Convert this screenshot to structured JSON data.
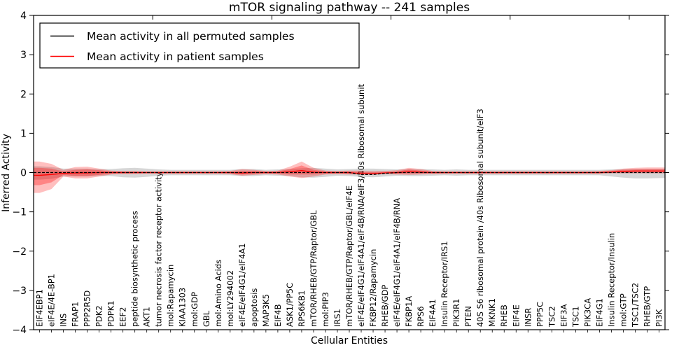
{
  "chart_data": {
    "type": "line",
    "title": "mTOR signaling pathway -- 241 samples",
    "xlabel": "Cellular Entities",
    "ylabel": "Inferred Activity",
    "ylim": [
      -4,
      4
    ],
    "grid": false,
    "ytick_values": [
      4,
      3,
      2,
      1,
      0,
      -1,
      -2,
      -3,
      -4
    ],
    "ytick_labels": [
      "4",
      "3",
      "2",
      "1",
      "0",
      "−1",
      "−2",
      "−3",
      "−4"
    ],
    "top_tick_indices": [
      10,
      20,
      30,
      40,
      50
    ],
    "legend": {
      "position": "upper left",
      "entries": [
        {
          "label": "Mean activity in all permuted samples",
          "color": "#000000"
        },
        {
          "label": "Mean activity in patient samples",
          "color": "#ff0000"
        }
      ]
    },
    "x_labels": [
      "EIF4EBP1",
      "eIF4E/4E-BP1",
      "INS",
      "FRAP1",
      "PPP2R5D",
      "PDK2",
      "PDPK1",
      "EEF2",
      "peptide biosynthetic process",
      "AKT1",
      "tumor necrosis factor receptor activity",
      "mol:Rapamycin",
      "KIAA1303",
      "mol:GDP",
      "GBL",
      "mol:Amino Acids",
      "mol:LY294002",
      "eIF4E/eIF4G1/eIF4A1",
      "apoptosis",
      "MAP3K5",
      "EIF4B",
      "ASK1/PP5C",
      "RPS6KB1",
      "mTOR/RHEB/GTP/Raptor/GBL",
      "mol:PIP3",
      "IRS1",
      "mTOR/RHEB/GTP/Raptor/GBL/eIF4E",
      "eIF4E/eIF4G1/eIF4A1/eIF4B/RNA/eIF3/40s Ribosomal subunit",
      "FKBP12/Rapamycin",
      "RHEB/GDP",
      "eIF4E/eIF4G1/eIF4A1/eIF4B/RNA",
      "FKBP1A",
      "RPS6",
      "EIF4A1",
      "Insulin Receptor/IRS1",
      "PIK3R1",
      "PTEN",
      "40S S6 ribosomal protein /40s Ribosomal subunit/eIF3",
      "MKNK1",
      "RHEB",
      "EIF4E",
      "INSR",
      "PPP5C",
      "TSC2",
      "EIF3A",
      "TSC1",
      "PIK3CA",
      "EIF4G1",
      "Insulin Receptor/Insulin",
      "mol:GTP",
      "TSC1/TSC2",
      "RHEB/GTP",
      "PI3K"
    ],
    "series": [
      {
        "name": "Mean activity in all permuted samples",
        "color": "#000000",
        "style": "dashed",
        "values": [
          0,
          0,
          0,
          0,
          0,
          0,
          0,
          0,
          0,
          0,
          0,
          0,
          0,
          0,
          0,
          0,
          0,
          0,
          0,
          0,
          0,
          0,
          0,
          0,
          0,
          0,
          0,
          -0.05,
          -0.05,
          -0.02,
          0,
          0,
          0,
          0,
          0,
          0,
          0,
          0,
          0,
          0,
          0,
          0,
          0,
          0,
          0,
          0,
          0,
          0,
          0,
          0,
          0,
          0,
          0
        ]
      },
      {
        "name": "Mean activity in patient samples",
        "color": "#ff0000",
        "style": "solid",
        "values": [
          -0.07,
          -0.05,
          -0.02,
          -0.01,
          -0.01,
          0,
          0,
          0,
          0,
          0,
          0,
          0,
          0,
          0,
          0,
          0,
          0,
          -0.01,
          0,
          0,
          0,
          0.02,
          0.05,
          0.01,
          0,
          0,
          0,
          -0.03,
          -0.03,
          -0.01,
          0,
          0.02,
          0.01,
          0,
          0,
          0,
          0,
          0,
          0,
          0,
          0,
          0,
          0,
          0,
          0,
          0,
          0,
          0,
          0.01,
          0.03,
          0.04,
          0.04,
          0.04
        ]
      }
    ],
    "bands": [
      {
        "name": "permuted-sample-range",
        "color": "#808080",
        "opacity": 0.32,
        "upper": [
          0.16,
          0.14,
          0.1,
          0.1,
          0.1,
          0.09,
          0.09,
          0.11,
          0.12,
          0.1,
          0.08,
          0.07,
          0.07,
          0.07,
          0.07,
          0.07,
          0.07,
          0.09,
          0.09,
          0.07,
          0.08,
          0.09,
          0.11,
          0.12,
          0.1,
          0.08,
          0.09,
          0.1,
          0.1,
          0.09,
          0.08,
          0.09,
          0.09,
          0.08,
          0.07,
          0.08,
          0.07,
          0.07,
          0.07,
          0.07,
          0.07,
          0.07,
          0.07,
          0.07,
          0.07,
          0.07,
          0.07,
          0.07,
          0.08,
          0.09,
          0.09,
          0.09,
          0.09
        ],
        "lower": [
          -0.18,
          -0.16,
          -0.1,
          -0.1,
          -0.1,
          -0.09,
          -0.09,
          -0.12,
          -0.13,
          -0.11,
          -0.08,
          -0.07,
          -0.07,
          -0.07,
          -0.07,
          -0.07,
          -0.07,
          -0.09,
          -0.09,
          -0.07,
          -0.08,
          -0.09,
          -0.12,
          -0.13,
          -0.11,
          -0.08,
          -0.09,
          -0.11,
          -0.12,
          -0.1,
          -0.08,
          -0.09,
          -0.09,
          -0.08,
          -0.07,
          -0.08,
          -0.07,
          -0.07,
          -0.07,
          -0.07,
          -0.07,
          -0.07,
          -0.07,
          -0.07,
          -0.07,
          -0.07,
          -0.07,
          -0.07,
          -0.1,
          -0.13,
          -0.15,
          -0.15,
          -0.14
        ]
      },
      {
        "name": "patient-sample-range-outer",
        "color": "#ff0000",
        "opacity": 0.25,
        "upper": [
          0.28,
          0.22,
          0.07,
          0.14,
          0.15,
          0.1,
          0.05,
          0.04,
          0.04,
          0.03,
          0.03,
          0.03,
          0.03,
          0.03,
          0.03,
          0.03,
          0.04,
          0.09,
          0.07,
          0.04,
          0.05,
          0.15,
          0.28,
          0.12,
          0.05,
          0.04,
          0.05,
          0.05,
          0.04,
          0.04,
          0.06,
          0.12,
          0.09,
          0.04,
          0.03,
          0.03,
          0.03,
          0.03,
          0.03,
          0.03,
          0.03,
          0.03,
          0.03,
          0.03,
          0.03,
          0.03,
          0.03,
          0.04,
          0.06,
          0.1,
          0.12,
          0.13,
          0.13
        ],
        "lower": [
          -0.52,
          -0.42,
          -0.1,
          -0.15,
          -0.15,
          -0.1,
          -0.05,
          -0.04,
          -0.04,
          -0.03,
          -0.03,
          -0.03,
          -0.03,
          -0.03,
          -0.03,
          -0.03,
          -0.04,
          -0.08,
          -0.06,
          -0.04,
          -0.05,
          -0.1,
          -0.14,
          -0.1,
          -0.05,
          -0.04,
          -0.05,
          -0.05,
          -0.04,
          -0.04,
          -0.05,
          -0.06,
          -0.05,
          -0.04,
          -0.03,
          -0.03,
          -0.03,
          -0.03,
          -0.03,
          -0.03,
          -0.03,
          -0.03,
          -0.03,
          -0.03,
          -0.03,
          -0.03,
          -0.03,
          -0.03,
          -0.02,
          -0.02,
          -0.02,
          -0.02,
          -0.02
        ]
      },
      {
        "name": "patient-sample-range-inner",
        "color": "#ff0000",
        "opacity": 0.3,
        "upper": [
          0.12,
          0.1,
          0.03,
          0.07,
          0.08,
          0.06,
          0.03,
          0.02,
          0.02,
          0.02,
          0.02,
          0.02,
          0.02,
          0.02,
          0.02,
          0.02,
          0.02,
          0.04,
          0.04,
          0.02,
          0.03,
          0.09,
          0.18,
          0.07,
          0.03,
          0.02,
          0.03,
          0.01,
          0.01,
          0.02,
          0.03,
          0.08,
          0.05,
          0.02,
          0.02,
          0.02,
          0.02,
          0.02,
          0.02,
          0.02,
          0.02,
          0.02,
          0.02,
          0.02,
          0.02,
          0.02,
          0.02,
          0.02,
          0.04,
          0.07,
          0.08,
          0.09,
          0.09
        ],
        "lower": [
          -0.32,
          -0.25,
          -0.06,
          -0.09,
          -0.09,
          -0.06,
          -0.03,
          -0.02,
          -0.02,
          -0.02,
          -0.02,
          -0.02,
          -0.02,
          -0.02,
          -0.02,
          -0.02,
          -0.02,
          -0.05,
          -0.03,
          -0.02,
          -0.03,
          -0.05,
          -0.05,
          -0.05,
          -0.03,
          -0.02,
          -0.03,
          -0.04,
          -0.04,
          -0.02,
          -0.03,
          -0.02,
          -0.02,
          -0.02,
          -0.02,
          -0.02,
          -0.02,
          -0.02,
          -0.02,
          -0.02,
          -0.02,
          -0.02,
          -0.02,
          -0.02,
          -0.02,
          -0.02,
          -0.02,
          -0.02,
          0.0,
          0.0,
          0.01,
          0.01,
          0.01
        ]
      }
    ]
  }
}
